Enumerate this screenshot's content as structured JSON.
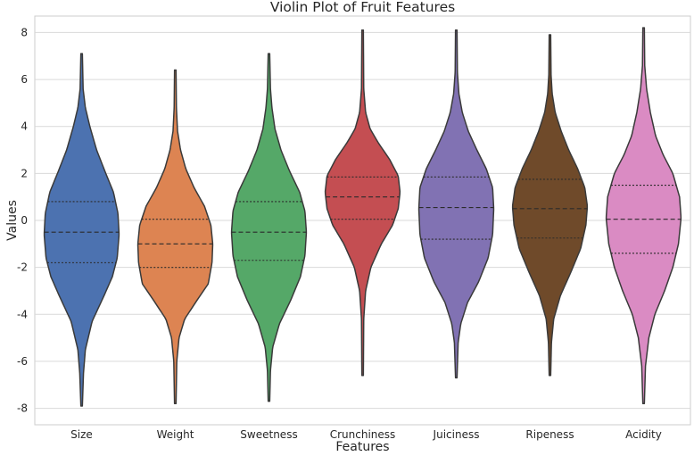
{
  "chart_data": {
    "type": "violin",
    "title": "Violin Plot of Fruit Features",
    "xlabel": "Features",
    "ylabel": "Values",
    "ylim": [
      -8.7,
      8.7
    ],
    "yticks": [
      -8,
      -6,
      -4,
      -2,
      0,
      2,
      4,
      6,
      8
    ],
    "grid": "horizontal",
    "inner": "quartile",
    "categories": [
      "Size",
      "Weight",
      "Sweetness",
      "Crunchiness",
      "Juiciness",
      "Ripeness",
      "Acidity"
    ],
    "colors": [
      "#4c72b0",
      "#dd8452",
      "#55a868",
      "#c44e52",
      "#8172b3",
      "#6f4a2a",
      "#da8bc3"
    ],
    "violins": [
      {
        "name": "Size",
        "min": -7.9,
        "max": 7.1,
        "q1": -1.8,
        "median": -0.5,
        "q3": 0.8,
        "width": [
          [
            -7.9,
            0.02
          ],
          [
            -6.5,
            0.05
          ],
          [
            -5.5,
            0.1
          ],
          [
            -4.3,
            0.28
          ],
          [
            -3.2,
            0.6
          ],
          [
            -2.4,
            0.82
          ],
          [
            -1.6,
            0.95
          ],
          [
            -0.6,
            1.0
          ],
          [
            0.3,
            0.97
          ],
          [
            1.2,
            0.85
          ],
          [
            2.1,
            0.62
          ],
          [
            3.0,
            0.4
          ],
          [
            4.0,
            0.22
          ],
          [
            4.8,
            0.1
          ],
          [
            5.6,
            0.04
          ],
          [
            7.1,
            0.02
          ]
        ]
      },
      {
        "name": "Weight",
        "min": -7.8,
        "max": 6.4,
        "q1": -2.0,
        "median": -1.0,
        "q3": 0.05,
        "width": [
          [
            -7.8,
            0.02
          ],
          [
            -6.0,
            0.04
          ],
          [
            -5.0,
            0.1
          ],
          [
            -4.2,
            0.25
          ],
          [
            -3.4,
            0.58
          ],
          [
            -2.7,
            0.88
          ],
          [
            -1.8,
            0.98
          ],
          [
            -1.0,
            1.0
          ],
          [
            -0.2,
            0.95
          ],
          [
            0.6,
            0.78
          ],
          [
            1.4,
            0.5
          ],
          [
            2.2,
            0.28
          ],
          [
            3.0,
            0.14
          ],
          [
            3.8,
            0.06
          ],
          [
            4.8,
            0.03
          ],
          [
            6.4,
            0.02
          ]
        ]
      },
      {
        "name": "Sweetness",
        "min": -7.7,
        "max": 7.1,
        "q1": -1.7,
        "median": -0.5,
        "q3": 0.8,
        "width": [
          [
            -7.7,
            0.02
          ],
          [
            -6.4,
            0.04
          ],
          [
            -5.4,
            0.1
          ],
          [
            -4.4,
            0.28
          ],
          [
            -3.4,
            0.58
          ],
          [
            -2.4,
            0.84
          ],
          [
            -1.5,
            0.96
          ],
          [
            -0.5,
            1.0
          ],
          [
            0.4,
            0.96
          ],
          [
            1.2,
            0.82
          ],
          [
            2.1,
            0.55
          ],
          [
            3.0,
            0.32
          ],
          [
            3.9,
            0.16
          ],
          [
            4.8,
            0.08
          ],
          [
            5.6,
            0.04
          ],
          [
            7.1,
            0.02
          ]
        ]
      },
      {
        "name": "Crunchiness",
        "min": -6.6,
        "max": 8.1,
        "q1": 0.05,
        "median": 1.0,
        "q3": 1.85,
        "width": [
          [
            -6.6,
            0.02
          ],
          [
            -4.2,
            0.03
          ],
          [
            -3.0,
            0.08
          ],
          [
            -2.0,
            0.22
          ],
          [
            -1.0,
            0.5
          ],
          [
            -0.2,
            0.8
          ],
          [
            0.5,
            0.95
          ],
          [
            1.2,
            1.0
          ],
          [
            1.9,
            0.95
          ],
          [
            2.6,
            0.72
          ],
          [
            3.3,
            0.42
          ],
          [
            3.9,
            0.2
          ],
          [
            4.6,
            0.08
          ],
          [
            5.6,
            0.03
          ],
          [
            8.1,
            0.02
          ]
        ]
      },
      {
        "name": "Juiciness",
        "min": -6.7,
        "max": 8.1,
        "q1": -0.8,
        "median": 0.55,
        "q3": 1.85,
        "width": [
          [
            -6.7,
            0.02
          ],
          [
            -5.2,
            0.05
          ],
          [
            -4.4,
            0.12
          ],
          [
            -3.5,
            0.3
          ],
          [
            -2.6,
            0.6
          ],
          [
            -1.6,
            0.85
          ],
          [
            -0.6,
            0.97
          ],
          [
            0.5,
            1.0
          ],
          [
            1.4,
            0.97
          ],
          [
            2.2,
            0.8
          ],
          [
            3.0,
            0.55
          ],
          [
            3.8,
            0.32
          ],
          [
            4.6,
            0.16
          ],
          [
            5.4,
            0.07
          ],
          [
            6.3,
            0.03
          ],
          [
            8.1,
            0.02
          ]
        ]
      },
      {
        "name": "Ripeness",
        "min": -6.6,
        "max": 7.9,
        "q1": -0.75,
        "median": 0.5,
        "q3": 1.75,
        "width": [
          [
            -6.6,
            0.02
          ],
          [
            -5.2,
            0.04
          ],
          [
            -4.2,
            0.1
          ],
          [
            -3.2,
            0.28
          ],
          [
            -2.2,
            0.56
          ],
          [
            -1.2,
            0.82
          ],
          [
            -0.2,
            0.96
          ],
          [
            0.6,
            1.0
          ],
          [
            1.4,
            0.93
          ],
          [
            2.2,
            0.74
          ],
          [
            3.0,
            0.5
          ],
          [
            3.8,
            0.3
          ],
          [
            4.6,
            0.14
          ],
          [
            5.4,
            0.06
          ],
          [
            6.2,
            0.03
          ],
          [
            7.9,
            0.02
          ]
        ]
      },
      {
        "name": "Acidity",
        "min": -7.8,
        "max": 8.2,
        "q1": -1.4,
        "median": 0.05,
        "q3": 1.5,
        "width": [
          [
            -7.8,
            0.02
          ],
          [
            -6.2,
            0.05
          ],
          [
            -5.0,
            0.14
          ],
          [
            -4.0,
            0.3
          ],
          [
            -3.0,
            0.56
          ],
          [
            -2.0,
            0.78
          ],
          [
            -1.0,
            0.93
          ],
          [
            0.1,
            1.0
          ],
          [
            1.0,
            0.96
          ],
          [
            2.0,
            0.78
          ],
          [
            2.8,
            0.52
          ],
          [
            3.6,
            0.32
          ],
          [
            4.6,
            0.18
          ],
          [
            5.6,
            0.08
          ],
          [
            6.6,
            0.03
          ],
          [
            8.2,
            0.02
          ]
        ]
      }
    ]
  }
}
